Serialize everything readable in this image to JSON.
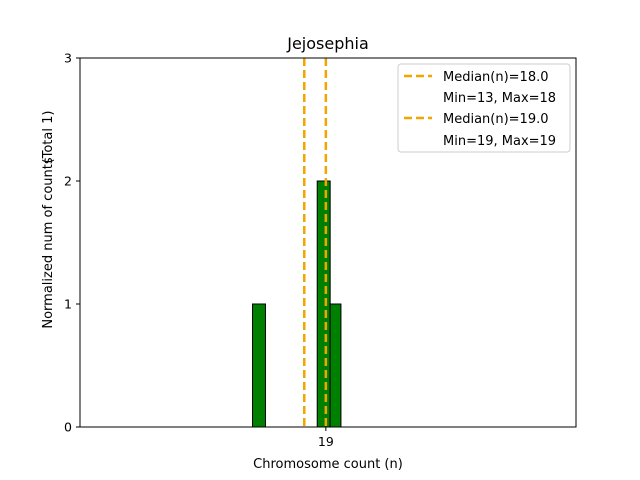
{
  "chart_data": {
    "type": "bar",
    "title": "Jejosephia",
    "xlabel": "Chromosome count (n)",
    "ylabel": "Normalized num of counts",
    "ylabel_extra": "(Total 1)",
    "ylim": [
      0,
      3
    ],
    "xlim": [
      7.6,
      30.6
    ],
    "yticks": [
      0,
      1,
      2,
      3
    ],
    "xticks": [
      19
    ],
    "bar_color": "#008000",
    "bar_edge_color": "#000000",
    "bars": [
      {
        "x": 15.6,
        "width": 0.6,
        "value": 1
      },
      {
        "x": 18.6,
        "width": 0.6,
        "value": 2
      },
      {
        "x": 19.2,
        "width": 0.5,
        "value": 1
      }
    ],
    "zero_line": {
      "x0": 7.6,
      "x1": 20.9
    },
    "medians": [
      {
        "value": 18.0,
        "color": "#f0a500",
        "label": "Median(n)=18.0",
        "detail": "Min=13, Max=18"
      },
      {
        "value": 19.0,
        "color": "#f0a500",
        "label": "Median(n)=19.0",
        "detail": "Min=19, Max=19"
      }
    ],
    "legend_position": "upper right"
  }
}
